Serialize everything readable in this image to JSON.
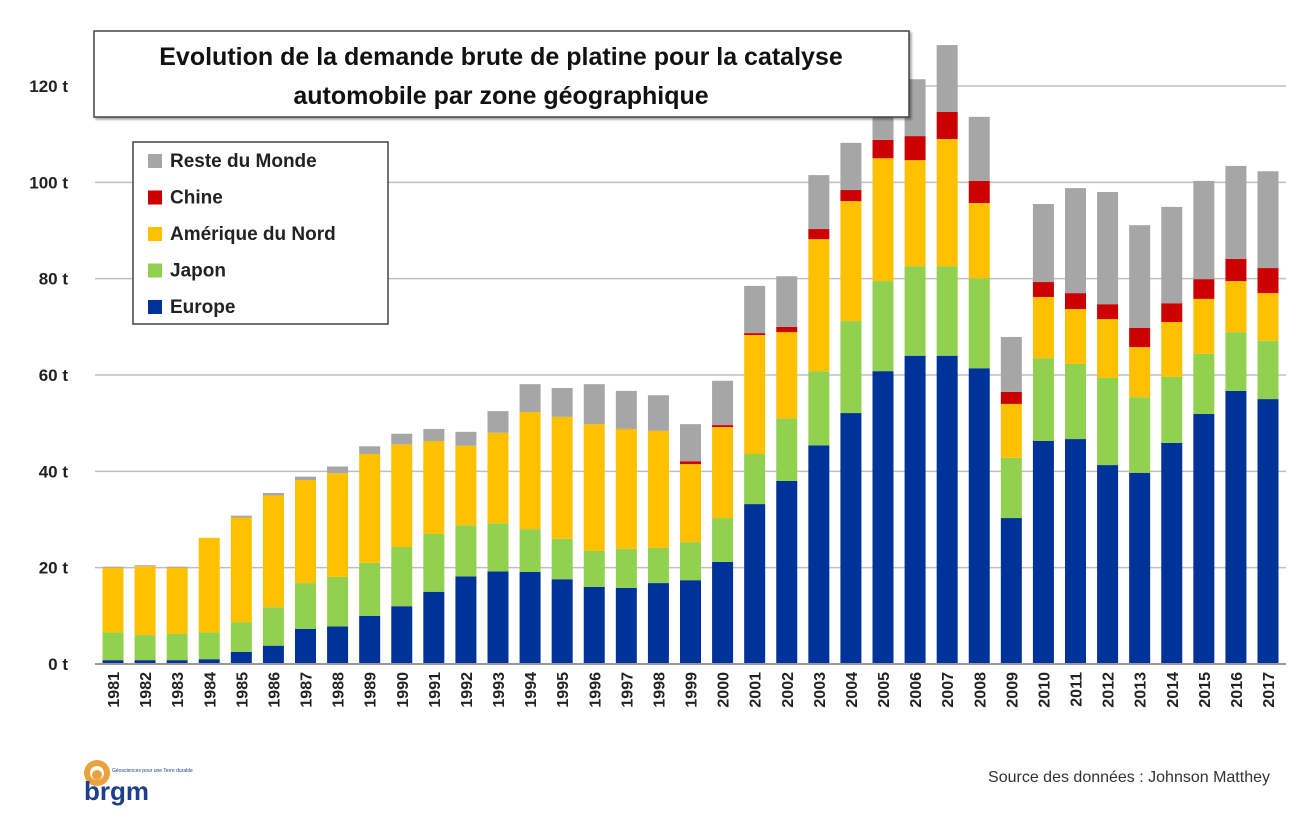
{
  "chart_data": {
    "type": "bar",
    "stacked": true,
    "title": "Evolution de la demande brute de platine pour la catalyse automobile par zone géographique",
    "title_lines": [
      "Evolution de la demande brute de platine pour la catalyse",
      "automobile par zone géographique"
    ],
    "xlabel": "",
    "ylabel": "",
    "ylim": [
      0,
      130
    ],
    "yticks": [
      0,
      20,
      40,
      60,
      80,
      100,
      120
    ],
    "ytick_labels": [
      "0 t",
      "20 t",
      "40 t",
      "60 t",
      "80 t",
      "100 t",
      "120 t"
    ],
    "grid": true,
    "legend_position": "top-left",
    "categories": [
      "1981",
      "1982",
      "1983",
      "1984",
      "1985",
      "1986",
      "1987",
      "1988",
      "1989",
      "1990",
      "1991",
      "1992",
      "1993",
      "1994",
      "1995",
      "1996",
      "1997",
      "1998",
      "1999",
      "2000",
      "2001",
      "2002",
      "2003",
      "2004",
      "2005",
      "2006",
      "2007",
      "2008",
      "2009",
      "2010",
      "2011",
      "2012",
      "2013",
      "2014",
      "2015",
      "2016",
      "2017"
    ],
    "series": [
      {
        "name": "Europe",
        "color": "#003399",
        "values": [
          0.8,
          0.8,
          0.8,
          1.0,
          2.5,
          3.8,
          7.3,
          7.8,
          10.0,
          12.0,
          15.0,
          18.2,
          19.2,
          19.1,
          17.6,
          16.0,
          15.8,
          16.8,
          17.4,
          21.2,
          33.2,
          38.0,
          45.4,
          52.1,
          60.8,
          64.0,
          64.0,
          61.4,
          30.3,
          46.3,
          46.7,
          41.3,
          39.7,
          45.9,
          51.9,
          56.7,
          55.0
        ]
      },
      {
        "name": "Japon",
        "color": "#92D050",
        "values": [
          5.8,
          5.2,
          5.5,
          5.6,
          6.2,
          8.0,
          9.5,
          10.3,
          11.0,
          12.3,
          12.0,
          10.6,
          10.0,
          8.9,
          8.4,
          7.5,
          8.1,
          7.3,
          7.9,
          9.1,
          10.4,
          13.0,
          15.4,
          19.1,
          18.7,
          18.6,
          18.6,
          18.7,
          12.5,
          17.2,
          15.6,
          18.1,
          15.7,
          13.7,
          12.5,
          12.2,
          12.1
        ]
      },
      {
        "name": "Amérique du Nord",
        "color": "#FFC000",
        "values": [
          13.4,
          14.3,
          13.7,
          19.6,
          21.7,
          23.2,
          21.4,
          21.5,
          22.6,
          21.3,
          19.3,
          16.5,
          18.8,
          24.3,
          25.3,
          26.3,
          24.9,
          24.3,
          16.2,
          18.9,
          24.7,
          17.9,
          27.4,
          24.9,
          25.5,
          22.0,
          26.4,
          15.6,
          11.2,
          12.7,
          11.4,
          12.2,
          10.4,
          11.4,
          11.4,
          10.6,
          9.9
        ]
      },
      {
        "name": "Chine",
        "color": "#CC0000",
        "values": [
          0,
          0,
          0,
          0,
          0,
          0,
          0,
          0,
          0,
          0,
          0,
          0,
          0,
          0,
          0,
          0,
          0,
          0,
          0.6,
          0.4,
          0.4,
          1.1,
          2.1,
          2.3,
          3.8,
          5.0,
          5.6,
          4.6,
          2.5,
          3.1,
          3.3,
          3.1,
          4.0,
          3.9,
          4.1,
          4.6,
          5.2
        ]
      },
      {
        "name": "Reste du Monde",
        "color": "#A6A6A6",
        "values": [
          0.2,
          0.2,
          0.2,
          0,
          0.4,
          0.5,
          0.7,
          1.4,
          1.6,
          2.2,
          2.5,
          2.9,
          4.5,
          5.8,
          6.0,
          8.3,
          7.9,
          7.4,
          7.7,
          9.2,
          9.8,
          10.5,
          11.2,
          9.8,
          7.2,
          11.8,
          13.9,
          13.3,
          11.4,
          16.2,
          21.8,
          23.3,
          21.3,
          20.0,
          20.4,
          19.3,
          20.1
        ]
      }
    ],
    "legend_order": [
      "Reste du Monde",
      "Chine",
      "Amérique du Nord",
      "Japon",
      "Europe"
    ]
  },
  "source": "Source des données : Johnson Matthey",
  "logo": {
    "text": "brgm",
    "tagline": "Géosciences pour une Terre durable"
  }
}
